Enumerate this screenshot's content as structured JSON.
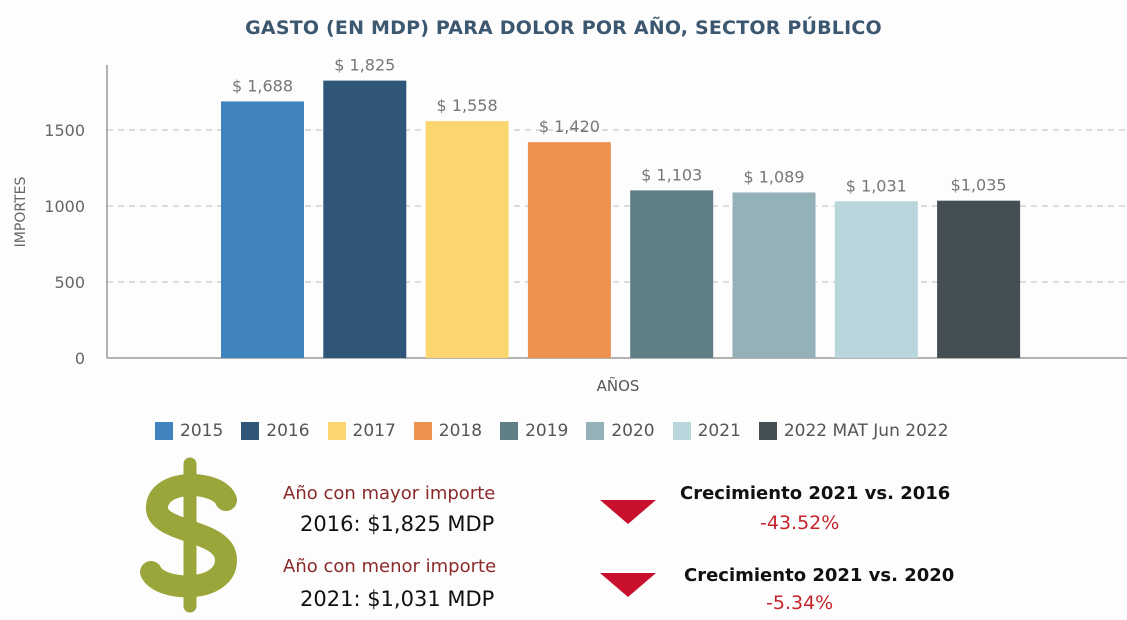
{
  "chart_data": {
    "type": "bar",
    "title": "GASTO (EN MDP) PARA  DOLOR POR AÑO, SECTOR PÚBLICO",
    "xlabel": "AÑOS",
    "ylabel": "IMPORTES",
    "ylim": [
      0,
      1900
    ],
    "yticks": [
      0,
      500,
      1000,
      1500
    ],
    "grid": "horizontal dashed",
    "legend_placement": "bottom",
    "categories": [
      "2015",
      "2016",
      "2017",
      "2018",
      "2019",
      "2020",
      "2021",
      "2022 MAT Jun 2022"
    ],
    "values": [
      1688,
      1825,
      1558,
      1420,
      1103,
      1089,
      1031,
      1035
    ],
    "data_labels": [
      "$  1,688",
      "$  1,825",
      "$  1,558",
      "$  1,420",
      "$  1,103",
      "$  1,089",
      "$  1,031",
      "$1,035"
    ],
    "colors": [
      "#3f83bf",
      "#2f5578",
      "#fbd66f",
      "#ec9150",
      "#5f7e86",
      "#93b1b7",
      "#b8d6dc",
      "#434f53"
    ]
  },
  "summary": {
    "icon": "dollar-sign-icon",
    "max_label": "Año con mayor importe",
    "max_value": "2016: $1,825 MDP",
    "min_label": "Año con menor importe",
    "min_value": "2021: $1,031 MDP",
    "growth1_label": "Crecimiento 2021 vs. 2016",
    "growth1_value": "-43.52%",
    "growth2_label": "Crecimiento 2021 vs. 2020",
    "growth2_value": "-5.34%",
    "down_color": "#c8102e",
    "dollar_color": "#9aa63a"
  }
}
